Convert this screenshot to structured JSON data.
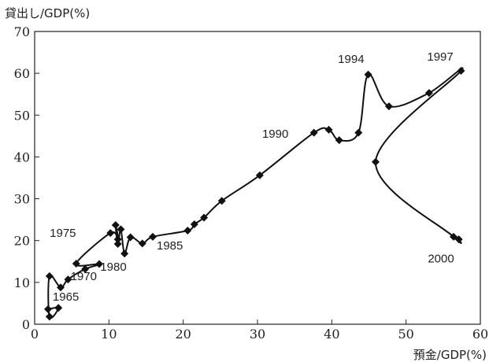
{
  "chart_data": {
    "type": "scatter",
    "connected": true,
    "ylabel": "貸出し/GDP(%)",
    "xlabel": "預金/GDP(%)",
    "xlim": [
      0,
      60
    ],
    "ylim": [
      0,
      70
    ],
    "xticks": [
      0,
      10,
      20,
      30,
      40,
      50,
      60
    ],
    "yticks": [
      0,
      10,
      20,
      30,
      40,
      50,
      60,
      70
    ],
    "grid": false,
    "legend": "none",
    "points": [
      {
        "x": 1.8,
        "y": 3.6
      },
      {
        "x": 3.2,
        "y": 3.9
      },
      {
        "x": 2.0,
        "y": 1.8
      },
      {
        "x": 2.0,
        "y": 11.5
      },
      {
        "x": 3.5,
        "y": 8.8
      },
      {
        "x": 4.5,
        "y": 10.7
      },
      {
        "x": 6.8,
        "y": 13.2
      },
      {
        "x": 8.7,
        "y": 14.4
      },
      {
        "x": 5.6,
        "y": 14.5
      },
      {
        "x": 10.2,
        "y": 21.8
      },
      {
        "x": 11.2,
        "y": 20.3
      },
      {
        "x": 10.9,
        "y": 23.7
      },
      {
        "x": 11.2,
        "y": 19.2
      },
      {
        "x": 11.6,
        "y": 22.7
      },
      {
        "x": 12.1,
        "y": 16.9
      },
      {
        "x": 12.9,
        "y": 20.8
      },
      {
        "x": 14.5,
        "y": 19.3
      },
      {
        "x": 15.9,
        "y": 20.9
      },
      {
        "x": 20.6,
        "y": 22.4
      },
      {
        "x": 21.5,
        "y": 23.9
      },
      {
        "x": 22.8,
        "y": 25.5
      },
      {
        "x": 25.2,
        "y": 29.5
      },
      {
        "x": 30.3,
        "y": 35.6
      },
      {
        "x": 37.6,
        "y": 45.8
      },
      {
        "x": 39.6,
        "y": 46.5
      },
      {
        "x": 41.0,
        "y": 44.0
      },
      {
        "x": 43.6,
        "y": 45.8
      },
      {
        "x": 44.9,
        "y": 59.7
      },
      {
        "x": 47.7,
        "y": 52.1
      },
      {
        "x": 53.1,
        "y": 55.3
      },
      {
        "x": 57.4,
        "y": 60.6
      },
      {
        "x": 45.9,
        "y": 38.8
      },
      {
        "x": 56.4,
        "y": 20.9
      },
      {
        "x": 57.1,
        "y": 20.3
      }
    ],
    "annotations": [
      {
        "text": "1965",
        "x": 4.2,
        "y": 5.6
      },
      {
        "text": "1970",
        "x": 6.6,
        "y": 10.5
      },
      {
        "text": "1975",
        "x": 3.8,
        "y": 20.9
      },
      {
        "text": "1980",
        "x": 10.6,
        "y": 12.8
      },
      {
        "text": "1985",
        "x": 18.2,
        "y": 17.9
      },
      {
        "text": "1990",
        "x": 32.4,
        "y": 44.6
      },
      {
        "text": "1994",
        "x": 42.6,
        "y": 62.5
      },
      {
        "text": "1997",
        "x": 54.6,
        "y": 63.0
      },
      {
        "text": "2000",
        "x": 54.7,
        "y": 14.8
      }
    ]
  }
}
